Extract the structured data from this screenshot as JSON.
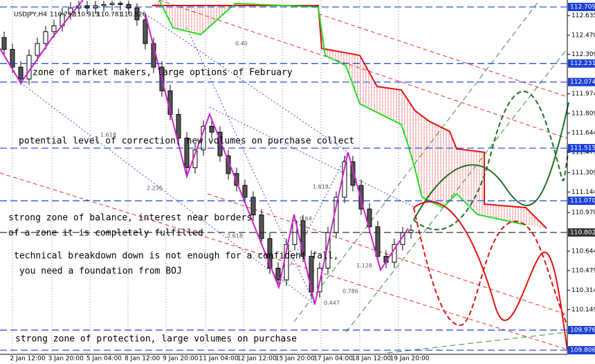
{
  "chart_data": {
    "type": "candlestick",
    "title": "USDJPY,H4",
    "header_values": [
      110.792,
      110.913,
      110.781,
      110.826
    ],
    "open": [
      112.45,
      112.35,
      112.2,
      112.1,
      112.3,
      112.4,
      112.5,
      112.55,
      112.65,
      112.7,
      112.72,
      112.7,
      112.72,
      112.73,
      112.74,
      112.73,
      112.7,
      112.6,
      112.4,
      112.2,
      112.0,
      111.8,
      111.6,
      111.35,
      111.5,
      111.7,
      111.65,
      111.45,
      111.3,
      111.2,
      111.1,
      110.95,
      110.75,
      110.5,
      110.4,
      110.7,
      110.9,
      110.6,
      110.3,
      110.5,
      110.8,
      111.1,
      111.4,
      111.2,
      111.0,
      110.85,
      110.6,
      110.55,
      110.7,
      110.8
    ],
    "high": [
      112.5,
      112.4,
      112.25,
      112.35,
      112.45,
      112.55,
      112.6,
      112.7,
      112.75,
      112.76,
      112.76,
      112.76,
      112.76,
      112.76,
      112.76,
      112.76,
      112.74,
      112.65,
      112.45,
      112.25,
      112.05,
      111.85,
      111.65,
      111.55,
      111.75,
      111.75,
      111.7,
      111.5,
      111.35,
      111.25,
      111.15,
      111.0,
      110.8,
      110.55,
      110.75,
      110.95,
      110.95,
      110.65,
      110.55,
      110.85,
      111.15,
      111.45,
      111.45,
      111.25,
      111.05,
      110.9,
      110.65,
      110.75,
      110.85,
      110.87
    ],
    "low": [
      112.3,
      112.15,
      112.05,
      112.05,
      112.25,
      112.35,
      112.45,
      112.5,
      112.6,
      112.65,
      112.65,
      112.65,
      112.67,
      112.68,
      112.68,
      112.65,
      112.55,
      112.35,
      112.15,
      111.95,
      111.75,
      111.55,
      111.3,
      111.3,
      111.45,
      111.6,
      111.4,
      111.25,
      111.15,
      111.05,
      110.9,
      110.7,
      110.45,
      110.35,
      110.35,
      110.65,
      110.55,
      110.25,
      110.25,
      110.45,
      110.75,
      111.05,
      111.15,
      110.95,
      110.8,
      110.55,
      110.5,
      110.5,
      110.65,
      110.75
    ],
    "close": [
      112.35,
      112.2,
      112.1,
      112.3,
      112.4,
      112.5,
      112.55,
      112.65,
      112.7,
      112.72,
      112.7,
      112.72,
      112.73,
      112.74,
      112.73,
      112.7,
      112.6,
      112.4,
      112.2,
      112.0,
      111.8,
      111.6,
      111.35,
      111.5,
      111.7,
      111.65,
      111.45,
      111.3,
      111.2,
      111.1,
      110.95,
      110.75,
      110.5,
      110.4,
      110.7,
      110.9,
      110.6,
      110.3,
      110.5,
      110.8,
      111.1,
      111.4,
      111.2,
      111.0,
      110.85,
      110.6,
      110.55,
      110.7,
      110.8,
      110.82
    ],
    "up_color": "#ffffff",
    "down_color": "#555555",
    "ylim": [
      109.783,
      112.768
    ],
    "yticks": [
      112.635,
      {
        "value": 112.47,
        "label": "112.470"
      },
      112.309,
      111.974,
      111.809,
      111.644,
      111.479,
      111.309,
      111.144,
      {
        "value": 110.97,
        "label": "110.970"
      },
      110.644,
      110.479,
      110.314,
      110.149
    ],
    "levels": [
      {
        "value": 112.709,
        "label": "112.709",
        "color": "#1a3fd6"
      },
      {
        "value": 112.231,
        "label": "112.231",
        "color": "#1a3fd6"
      },
      {
        "value": 112.074,
        "label": "112.074",
        "color": "#1a3fd6"
      },
      {
        "value": 111.515,
        "label": "111.515",
        "color": "#1a3fd6"
      },
      {
        "value": 111.07,
        "label": "111.070",
        "color": "#1a3fd6"
      },
      {
        "value": 110.802,
        "label": "110.802",
        "color": "#333333"
      },
      {
        "value": 109.976,
        "label": "109.976",
        "color": "#1a3fd6"
      },
      {
        "value": 109.806,
        "label": "109.806",
        "color": "#1a3fd6"
      }
    ],
    "categories": [
      "2 Jan 12:00",
      "3 Jan 20:00",
      "5 Jan 04:00",
      "8 Jan 12:00",
      "9 Jan 20:00",
      "11 Jan 04:00",
      "12 Jan 12:00",
      "15 Jan 20:00",
      "17 Jan 04:00",
      "18 Jan 12:00",
      "19 Jan 20:00"
    ],
    "annotations": [
      "zone of market makers, large options of February",
      "potential level of correction, new volumes on purchase collect",
      "strong zone of balance, interest near borders",
      "of a zone it is completely fulfilled",
      "technical breakdown down is not enough for a confident fall,",
      "you need a foundation from BOJ",
      "strong zone of protection, large volumes on purchase"
    ],
    "fib_labels": [
      "0.40",
      "1.618",
      "2.236",
      "2.618",
      "1.618",
      "0.64",
      "1.128",
      "0.786",
      "0.447"
    ]
  }
}
